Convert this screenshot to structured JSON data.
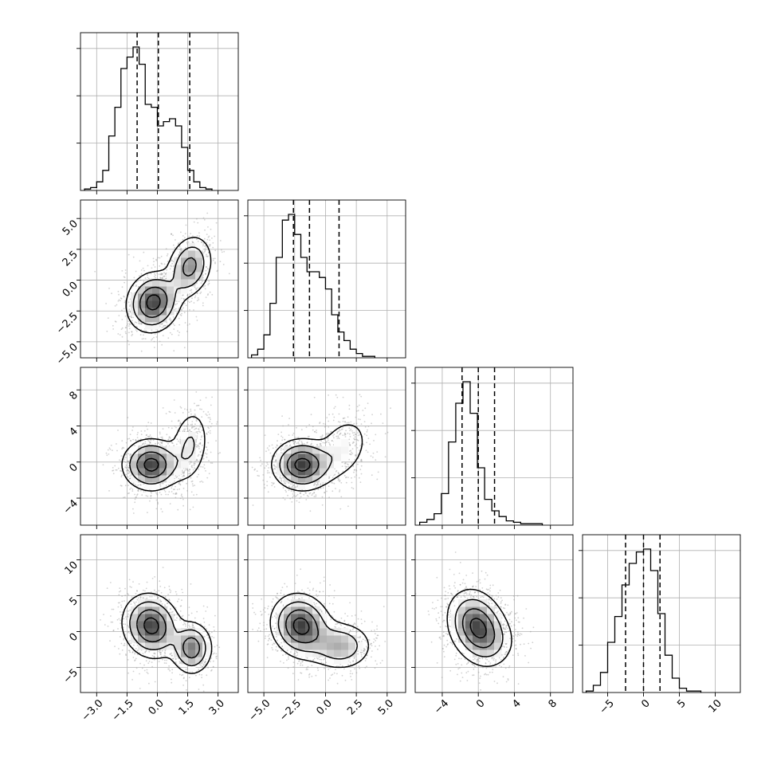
{
  "chart_data": {
    "type": "corner",
    "variables": [
      {
        "index": 0,
        "range": [
          -3.8,
          4.0
        ],
        "ticks": [
          -3.0,
          -1.5,
          0.0,
          1.5,
          3.0
        ],
        "tick_labels": [
          "−3.0",
          "−1.5",
          "0.0",
          "1.5",
          "3.0"
        ],
        "quantiles": [
          -1.0,
          0.05,
          1.6
        ]
      },
      {
        "index": 1,
        "range": [
          -6.3,
          6.5
        ],
        "ticks": [
          -5.0,
          -2.5,
          0.0,
          2.5,
          5.0
        ],
        "tick_labels": [
          "−5.0",
          "−2.5",
          "0.0",
          "2.5",
          "5.0"
        ],
        "quantiles": [
          -2.6,
          -1.3,
          1.1
        ]
      },
      {
        "index": 2,
        "range": [
          -7.0,
          10.5
        ],
        "ticks": [
          -4,
          0,
          4,
          8
        ],
        "tick_labels": [
          "−4",
          "0",
          "4",
          "8"
        ],
        "quantiles": [
          -1.8,
          0.0,
          1.8
        ]
      },
      {
        "index": 3,
        "range": [
          -8.5,
          13.5
        ],
        "ticks": [
          -5,
          0,
          5,
          10
        ],
        "tick_labels": [
          "−5",
          "0",
          "5",
          "10"
        ],
        "quantiles": [
          -2.5,
          0.0,
          2.3
        ]
      }
    ],
    "histograms": [
      {
        "var": 0,
        "edges_start": -3.6,
        "bin_width": 0.3,
        "counts": [
          1,
          2,
          6,
          14,
          38,
          58,
          85,
          93,
          100,
          88,
          60,
          58,
          45,
          48,
          50,
          45,
          30,
          14,
          6,
          2,
          1
        ],
        "ymax": 110
      },
      {
        "var": 1,
        "edges_start": -6.0,
        "bin_width": 0.5,
        "counts": [
          2,
          6,
          16,
          38,
          70,
          96,
          100,
          86,
          70,
          60,
          60,
          56,
          48,
          30,
          18,
          12,
          6,
          3,
          1,
          1
        ],
        "ymax": 110
      },
      {
        "var": 2,
        "edges_start": -6.5,
        "bin_width": 0.8,
        "counts": [
          2,
          4,
          8,
          22,
          58,
          85,
          100,
          78,
          40,
          18,
          10,
          6,
          3,
          2,
          1,
          1,
          1
        ],
        "ymax": 110
      },
      {
        "var": 3,
        "edges_start": -8.0,
        "bin_width": 1.0,
        "counts": [
          1,
          5,
          14,
          35,
          53,
          75,
          90,
          98,
          100,
          85,
          55,
          26,
          10,
          3,
          1,
          1
        ],
        "ymax": 110
      }
    ],
    "pairs": [
      {
        "x": 0,
        "y": 1,
        "components": [
          {
            "mx": -0.2,
            "my": -1.8,
            "sx": 0.65,
            "sy": 1.2,
            "rho": 0.1,
            "w": 0.62
          },
          {
            "mx": 1.6,
            "my": 1.1,
            "sx": 0.55,
            "sy": 1.25,
            "rho": 0.2,
            "w": 0.38
          }
        ]
      },
      {
        "x": 0,
        "y": 2,
        "components": [
          {
            "mx": -0.3,
            "my": -0.3,
            "sx": 0.7,
            "sy": 1.4,
            "rho": 0.0,
            "w": 0.72
          },
          {
            "mx": 1.6,
            "my": 1.8,
            "sx": 0.5,
            "sy": 2.2,
            "rho": 0.2,
            "w": 0.28
          }
        ]
      },
      {
        "x": 0,
        "y": 3,
        "components": [
          {
            "mx": -0.3,
            "my": 0.8,
            "sx": 0.7,
            "sy": 2.2,
            "rho": -0.1,
            "w": 0.68
          },
          {
            "mx": 1.7,
            "my": -2.3,
            "sx": 0.5,
            "sy": 1.8,
            "rho": 0.0,
            "w": 0.32
          }
        ]
      },
      {
        "x": 1,
        "y": 2,
        "components": [
          {
            "mx": -1.9,
            "my": -0.3,
            "sx": 1.2,
            "sy": 1.4,
            "rho": 0.0,
            "w": 0.72
          },
          {
            "mx": 1.4,
            "my": 1.5,
            "sx": 1.2,
            "sy": 2.0,
            "rho": 0.3,
            "w": 0.28
          }
        ]
      },
      {
        "x": 1,
        "y": 3,
        "components": [
          {
            "mx": -2.0,
            "my": 0.8,
            "sx": 1.2,
            "sy": 2.2,
            "rho": -0.1,
            "w": 0.68
          },
          {
            "mx": 1.2,
            "my": -2.0,
            "sx": 1.3,
            "sy": 1.7,
            "rho": 0.0,
            "w": 0.32
          }
        ]
      },
      {
        "x": 2,
        "y": 3,
        "components": [
          {
            "mx": -0.2,
            "my": 0.8,
            "sx": 1.6,
            "sy": 2.5,
            "rho": -0.2,
            "w": 0.85
          },
          {
            "mx": 1.5,
            "my": -1.5,
            "sx": 1.5,
            "sy": 2.0,
            "rho": 0.0,
            "w": 0.15
          }
        ]
      }
    ]
  }
}
